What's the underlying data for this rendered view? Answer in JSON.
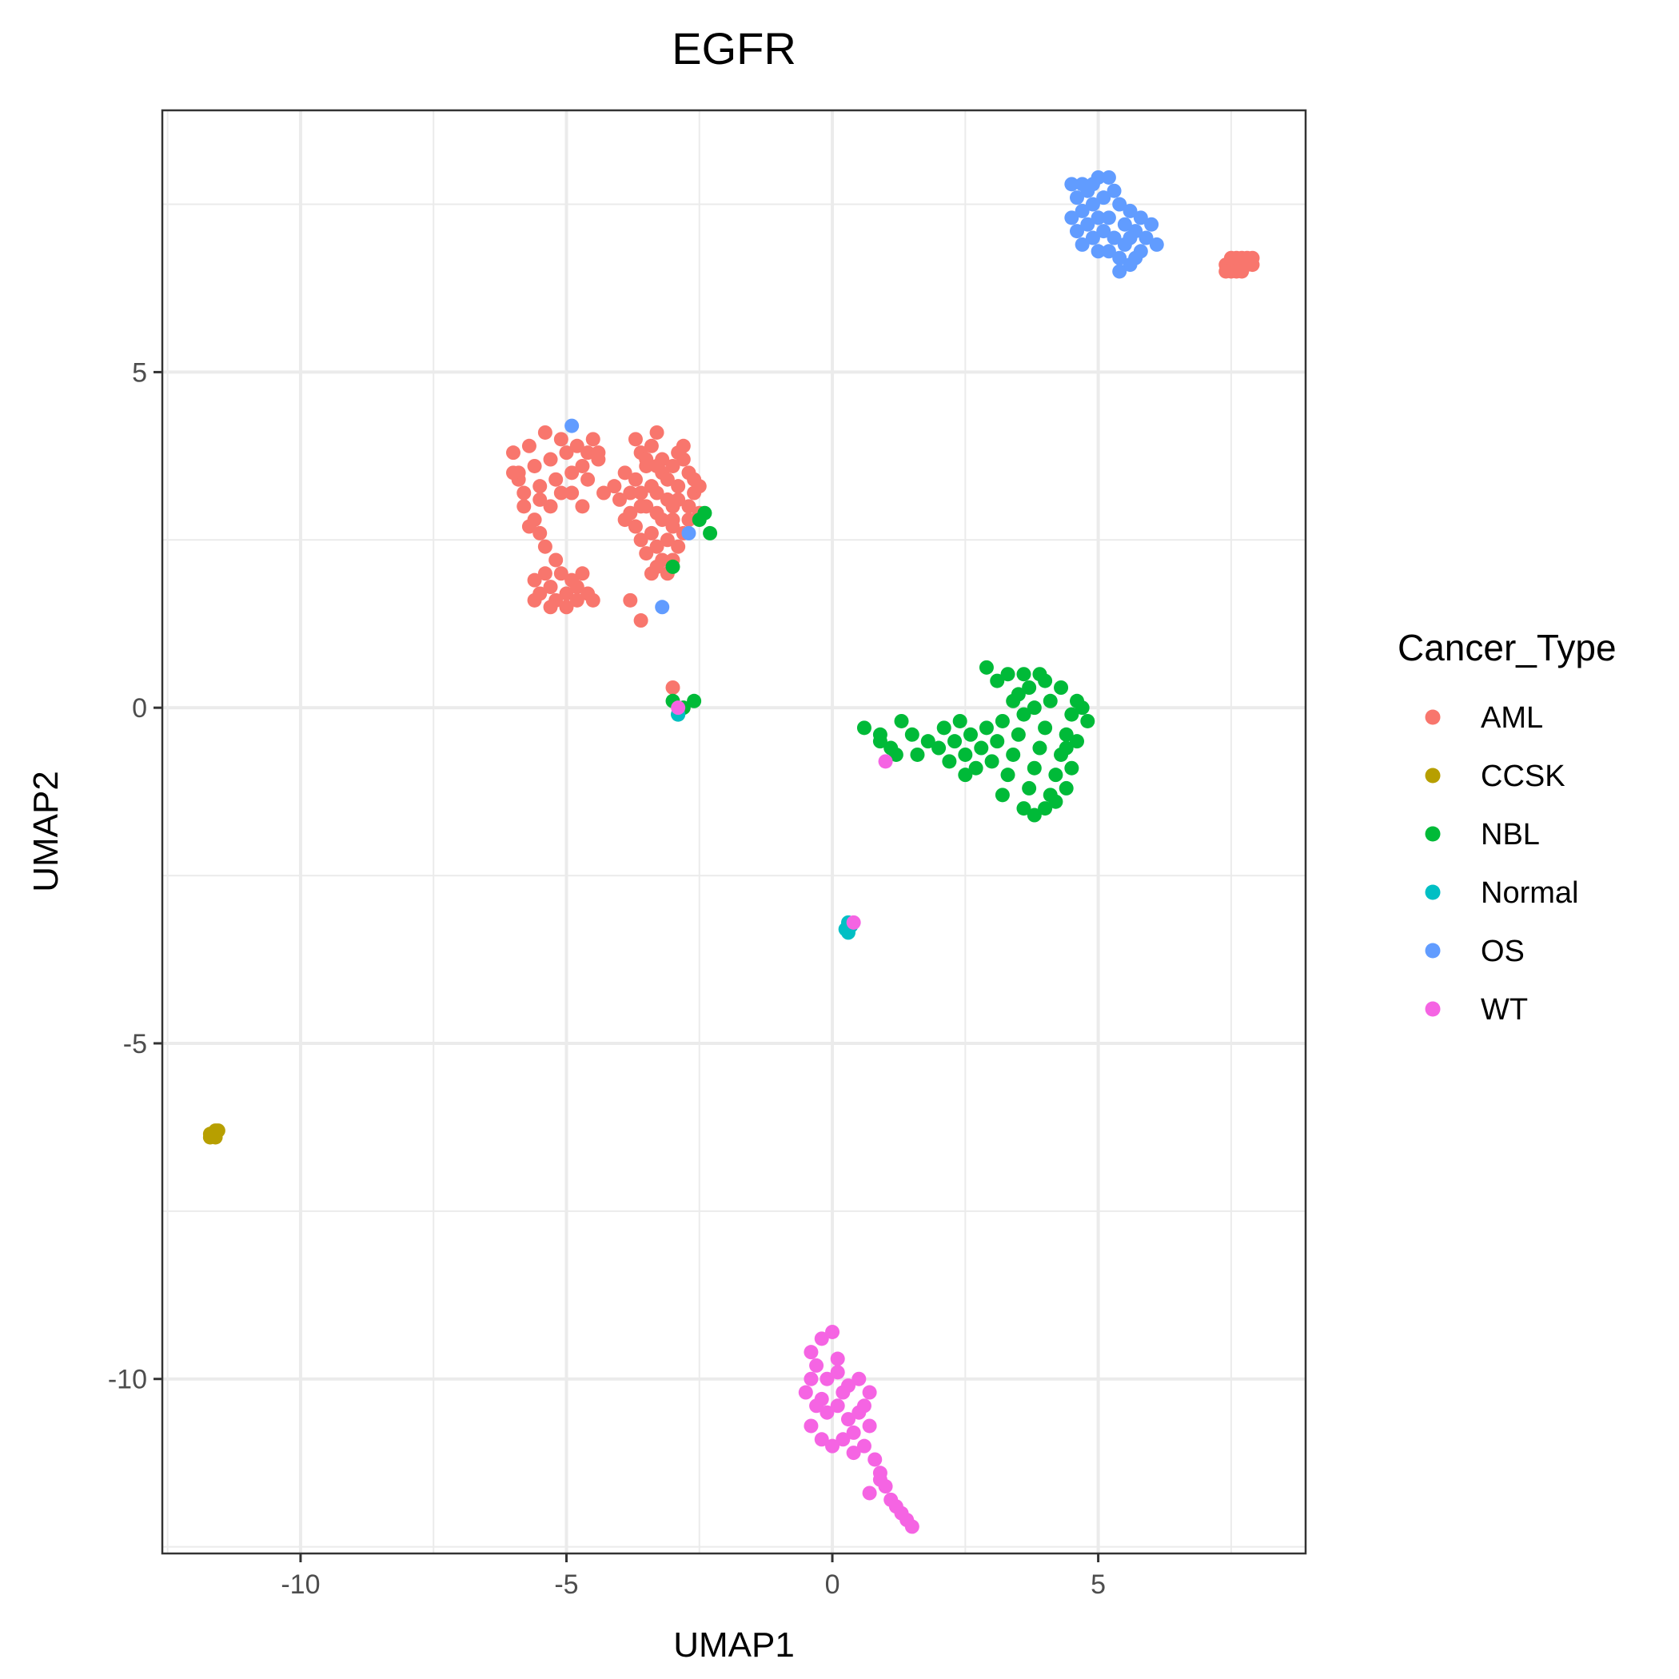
{
  "chart_data": {
    "type": "scatter",
    "title": "EGFR",
    "xlabel": "UMAP1",
    "ylabel": "UMAP2",
    "xlim": [
      -12.6,
      8.9
    ],
    "ylim": [
      -12.6,
      8.9
    ],
    "xticks": [
      -10,
      -5,
      0,
      5
    ],
    "yticks": [
      -10,
      -5,
      0,
      5
    ],
    "xtick_labels": [
      "-10",
      "-5",
      "0",
      "5"
    ],
    "ytick_labels": [
      "-10",
      "-5",
      "0",
      "5"
    ],
    "grid": true,
    "legend": {
      "title": "Cancer_Type",
      "position": "right"
    },
    "series": [
      {
        "name": "AML",
        "color": "#F8766D",
        "points": [
          [
            -6.0,
            3.8
          ],
          [
            -5.9,
            3.5
          ],
          [
            -5.8,
            3.2
          ],
          [
            -5.7,
            3.9
          ],
          [
            -5.6,
            3.6
          ],
          [
            -5.5,
            3.3
          ],
          [
            -5.4,
            4.1
          ],
          [
            -5.3,
            3.7
          ],
          [
            -5.2,
            3.4
          ],
          [
            -5.1,
            4.0
          ],
          [
            -5.0,
            3.8
          ],
          [
            -4.9,
            3.5
          ],
          [
            -4.8,
            3.9
          ],
          [
            -4.7,
            3.6
          ],
          [
            -4.6,
            3.8
          ],
          [
            -4.5,
            4.0
          ],
          [
            -4.4,
            3.7
          ],
          [
            -5.8,
            3.0
          ],
          [
            -5.6,
            2.8
          ],
          [
            -5.5,
            2.6
          ],
          [
            -5.4,
            2.4
          ],
          [
            -5.7,
            2.7
          ],
          [
            -5.3,
            3.0
          ],
          [
            -5.1,
            3.2
          ],
          [
            -5.5,
            3.1
          ],
          [
            -5.2,
            2.2
          ],
          [
            -5.4,
            2.0
          ],
          [
            -5.3,
            1.8
          ],
          [
            -5.5,
            1.7
          ],
          [
            -5.6,
            1.6
          ],
          [
            -5.2,
            1.6
          ],
          [
            -5.0,
            1.7
          ],
          [
            -4.9,
            1.9
          ],
          [
            -4.8,
            1.8
          ],
          [
            -4.7,
            2.0
          ],
          [
            -4.6,
            1.7
          ],
          [
            -4.5,
            1.6
          ],
          [
            -5.1,
            2.0
          ],
          [
            -5.0,
            1.5
          ],
          [
            -4.8,
            1.6
          ],
          [
            -5.3,
            1.5
          ],
          [
            -5.6,
            1.9
          ],
          [
            -4.7,
            3.0
          ],
          [
            -4.9,
            3.2
          ],
          [
            -4.4,
            3.8
          ],
          [
            -5.9,
            3.4
          ],
          [
            -6.0,
            3.5
          ],
          [
            -4.6,
            3.4
          ],
          [
            -3.9,
            3.5
          ],
          [
            -3.8,
            3.2
          ],
          [
            -3.7,
            3.4
          ],
          [
            -3.6,
            3.0
          ],
          [
            -3.5,
            3.6
          ],
          [
            -3.4,
            3.3
          ],
          [
            -3.3,
            2.9
          ],
          [
            -3.2,
            3.5
          ],
          [
            -3.1,
            3.1
          ],
          [
            -3.0,
            2.8
          ],
          [
            -2.9,
            3.3
          ],
          [
            -2.8,
            3.7
          ],
          [
            -2.7,
            3.0
          ],
          [
            -2.6,
            3.2
          ],
          [
            -3.7,
            4.0
          ],
          [
            -3.6,
            3.8
          ],
          [
            -3.4,
            3.9
          ],
          [
            -3.3,
            4.1
          ],
          [
            -3.2,
            3.7
          ],
          [
            -3.0,
            3.6
          ],
          [
            -2.9,
            3.8
          ],
          [
            -2.8,
            3.9
          ],
          [
            -3.9,
            2.8
          ],
          [
            -3.7,
            2.7
          ],
          [
            -3.6,
            2.5
          ],
          [
            -3.5,
            2.3
          ],
          [
            -3.4,
            2.6
          ],
          [
            -3.3,
            2.4
          ],
          [
            -3.2,
            2.2
          ],
          [
            -3.1,
            2.5
          ],
          [
            -3.0,
            2.7
          ],
          [
            -2.9,
            2.4
          ],
          [
            -3.4,
            2.0
          ],
          [
            -3.3,
            2.1
          ],
          [
            -3.1,
            2.0
          ],
          [
            -3.0,
            2.2
          ],
          [
            -2.8,
            2.6
          ],
          [
            -2.7,
            2.8
          ],
          [
            -3.5,
            3.0
          ],
          [
            -3.3,
            3.2
          ],
          [
            -3.1,
            3.4
          ],
          [
            -2.9,
            3.1
          ],
          [
            -2.7,
            3.5
          ],
          [
            -2.6,
            3.4
          ],
          [
            -2.5,
            3.3
          ],
          [
            -2.5,
            2.9
          ],
          [
            -3.8,
            2.9
          ],
          [
            -4.0,
            3.1
          ],
          [
            -4.1,
            3.3
          ],
          [
            -4.3,
            3.2
          ],
          [
            -3.3,
            3.6
          ],
          [
            -3.5,
            3.7
          ],
          [
            -3.0,
            3.0
          ],
          [
            -3.2,
            2.8
          ],
          [
            -3.6,
            3.2
          ],
          [
            -3.8,
            1.6
          ],
          [
            -3.6,
            1.3
          ],
          [
            -3.0,
            0.3
          ],
          [
            7.4,
            6.6
          ],
          [
            7.5,
            6.5
          ],
          [
            7.6,
            6.6
          ],
          [
            7.7,
            6.7
          ],
          [
            7.8,
            6.6
          ],
          [
            7.9,
            6.7
          ],
          [
            7.5,
            6.7
          ],
          [
            7.6,
            6.5
          ],
          [
            7.7,
            6.6
          ],
          [
            7.8,
            6.7
          ],
          [
            7.4,
            6.5
          ],
          [
            7.9,
            6.6
          ],
          [
            7.6,
            6.7
          ],
          [
            7.7,
            6.5
          ]
        ]
      },
      {
        "name": "CCSK",
        "color": "#B79F00",
        "points": [
          [
            -11.7,
            -6.4
          ],
          [
            -11.65,
            -6.35
          ],
          [
            -11.6,
            -6.3
          ],
          [
            -11.55,
            -6.3
          ],
          [
            -11.7,
            -6.35
          ],
          [
            -11.6,
            -6.4
          ]
        ]
      },
      {
        "name": "NBL",
        "color": "#00BA38",
        "points": [
          [
            -2.4,
            2.9
          ],
          [
            -2.3,
            2.6
          ],
          [
            -2.5,
            2.8
          ],
          [
            -3.0,
            2.1
          ],
          [
            -3.0,
            0.1
          ],
          [
            -2.8,
            0.0
          ],
          [
            -2.6,
            0.1
          ],
          [
            -2.9,
            -0.1
          ],
          [
            0.6,
            -0.3
          ],
          [
            0.9,
            -0.5
          ],
          [
            1.1,
            -0.6
          ],
          [
            1.3,
            -0.2
          ],
          [
            1.5,
            -0.4
          ],
          [
            1.6,
            -0.7
          ],
          [
            1.8,
            -0.5
          ],
          [
            2.0,
            -0.6
          ],
          [
            2.1,
            -0.3
          ],
          [
            2.2,
            -0.8
          ],
          [
            2.3,
            -0.5
          ],
          [
            2.4,
            -0.2
          ],
          [
            2.5,
            -0.7
          ],
          [
            2.6,
            -0.4
          ],
          [
            2.7,
            -0.9
          ],
          [
            2.8,
            -0.6
          ],
          [
            2.9,
            -0.3
          ],
          [
            3.0,
            -0.8
          ],
          [
            3.1,
            -0.5
          ],
          [
            3.2,
            -0.2
          ],
          [
            3.3,
            -1.0
          ],
          [
            3.4,
            -0.7
          ],
          [
            3.5,
            -0.4
          ],
          [
            3.6,
            -0.1
          ],
          [
            3.7,
            -1.2
          ],
          [
            3.8,
            -0.9
          ],
          [
            3.9,
            -0.6
          ],
          [
            4.0,
            -0.3
          ],
          [
            4.1,
            -1.3
          ],
          [
            4.2,
            -1.0
          ],
          [
            4.3,
            -0.7
          ],
          [
            4.4,
            -0.4
          ],
          [
            4.5,
            -0.1
          ],
          [
            4.6,
            0.1
          ],
          [
            4.7,
            0.0
          ],
          [
            4.8,
            -0.2
          ],
          [
            2.9,
            0.6
          ],
          [
            3.1,
            0.4
          ],
          [
            3.3,
            0.5
          ],
          [
            3.5,
            0.2
          ],
          [
            3.7,
            0.3
          ],
          [
            3.9,
            0.5
          ],
          [
            4.1,
            0.1
          ],
          [
            4.3,
            0.3
          ],
          [
            3.6,
            -1.5
          ],
          [
            3.8,
            -1.6
          ],
          [
            4.0,
            -1.5
          ],
          [
            4.2,
            -1.4
          ],
          [
            4.4,
            -1.2
          ],
          [
            4.5,
            -0.9
          ],
          [
            4.4,
            -0.6
          ],
          [
            4.6,
            -0.5
          ],
          [
            3.4,
            0.1
          ],
          [
            3.6,
            0.5
          ],
          [
            3.2,
            -1.3
          ],
          [
            2.5,
            -1.0
          ],
          [
            1.2,
            -0.7
          ],
          [
            0.9,
            -0.4
          ],
          [
            4.0,
            0.4
          ],
          [
            3.8,
            0.0
          ]
        ]
      },
      {
        "name": "Normal",
        "color": "#00BFC4",
        "points": [
          [
            0.3,
            -3.2
          ],
          [
            0.25,
            -3.3
          ],
          [
            0.35,
            -3.25
          ],
          [
            0.3,
            -3.35
          ],
          [
            -2.9,
            -0.1
          ]
        ]
      },
      {
        "name": "OS",
        "color": "#619CFF",
        "points": [
          [
            4.5,
            7.8
          ],
          [
            4.6,
            7.6
          ],
          [
            4.7,
            7.4
          ],
          [
            4.8,
            7.7
          ],
          [
            4.9,
            7.5
          ],
          [
            5.0,
            7.9
          ],
          [
            5.1,
            7.6
          ],
          [
            5.2,
            7.3
          ],
          [
            5.3,
            7.7
          ],
          [
            5.4,
            7.5
          ],
          [
            5.5,
            7.2
          ],
          [
            5.6,
            7.4
          ],
          [
            5.7,
            7.1
          ],
          [
            5.8,
            7.3
          ],
          [
            5.9,
            7.0
          ],
          [
            6.0,
            7.2
          ],
          [
            6.1,
            6.9
          ],
          [
            4.6,
            7.1
          ],
          [
            4.7,
            6.9
          ],
          [
            4.8,
            7.2
          ],
          [
            4.9,
            7.0
          ],
          [
            5.0,
            6.8
          ],
          [
            5.1,
            7.1
          ],
          [
            5.2,
            6.8
          ],
          [
            5.3,
            7.0
          ],
          [
            5.4,
            6.7
          ],
          [
            5.5,
            6.9
          ],
          [
            5.6,
            6.6
          ],
          [
            5.7,
            6.7
          ],
          [
            5.4,
            6.5
          ],
          [
            4.5,
            7.3
          ],
          [
            4.7,
            7.8
          ],
          [
            5.0,
            7.3
          ],
          [
            5.2,
            7.9
          ],
          [
            5.6,
            7.0
          ],
          [
            4.9,
            7.8
          ],
          [
            5.8,
            6.8
          ],
          [
            -4.9,
            4.2
          ],
          [
            -2.7,
            2.6
          ],
          [
            -3.2,
            1.5
          ]
        ]
      },
      {
        "name": "WT",
        "color": "#F564E3",
        "points": [
          [
            -0.4,
            -9.6
          ],
          [
            -0.2,
            -9.4
          ],
          [
            0.0,
            -9.3
          ],
          [
            -0.3,
            -9.8
          ],
          [
            -0.1,
            -10.0
          ],
          [
            0.1,
            -9.9
          ],
          [
            0.3,
            -10.1
          ],
          [
            0.5,
            -10.0
          ],
          [
            0.7,
            -10.2
          ],
          [
            -0.5,
            -10.2
          ],
          [
            -0.3,
            -10.4
          ],
          [
            -0.1,
            -10.5
          ],
          [
            0.1,
            -10.4
          ],
          [
            0.3,
            -10.6
          ],
          [
            0.5,
            -10.5
          ],
          [
            0.7,
            -10.7
          ],
          [
            -0.4,
            -10.7
          ],
          [
            -0.2,
            -10.9
          ],
          [
            0.0,
            -11.0
          ],
          [
            0.2,
            -10.9
          ],
          [
            0.4,
            -11.1
          ],
          [
            0.6,
            -11.0
          ],
          [
            0.8,
            -11.2
          ],
          [
            0.9,
            -11.4
          ],
          [
            1.0,
            -11.6
          ],
          [
            1.1,
            -11.8
          ],
          [
            1.2,
            -11.9
          ],
          [
            1.3,
            -12.0
          ],
          [
            1.4,
            -12.1
          ],
          [
            1.5,
            -12.2
          ],
          [
            0.7,
            -11.7
          ],
          [
            0.9,
            -11.5
          ],
          [
            -0.2,
            -10.3
          ],
          [
            0.2,
            -10.2
          ],
          [
            0.6,
            -10.4
          ],
          [
            0.4,
            -10.8
          ],
          [
            0.1,
            -9.7
          ],
          [
            -0.4,
            -10.0
          ],
          [
            1.0,
            -0.8
          ],
          [
            0.4,
            -3.2
          ],
          [
            -2.9,
            0.0
          ]
        ]
      }
    ]
  }
}
